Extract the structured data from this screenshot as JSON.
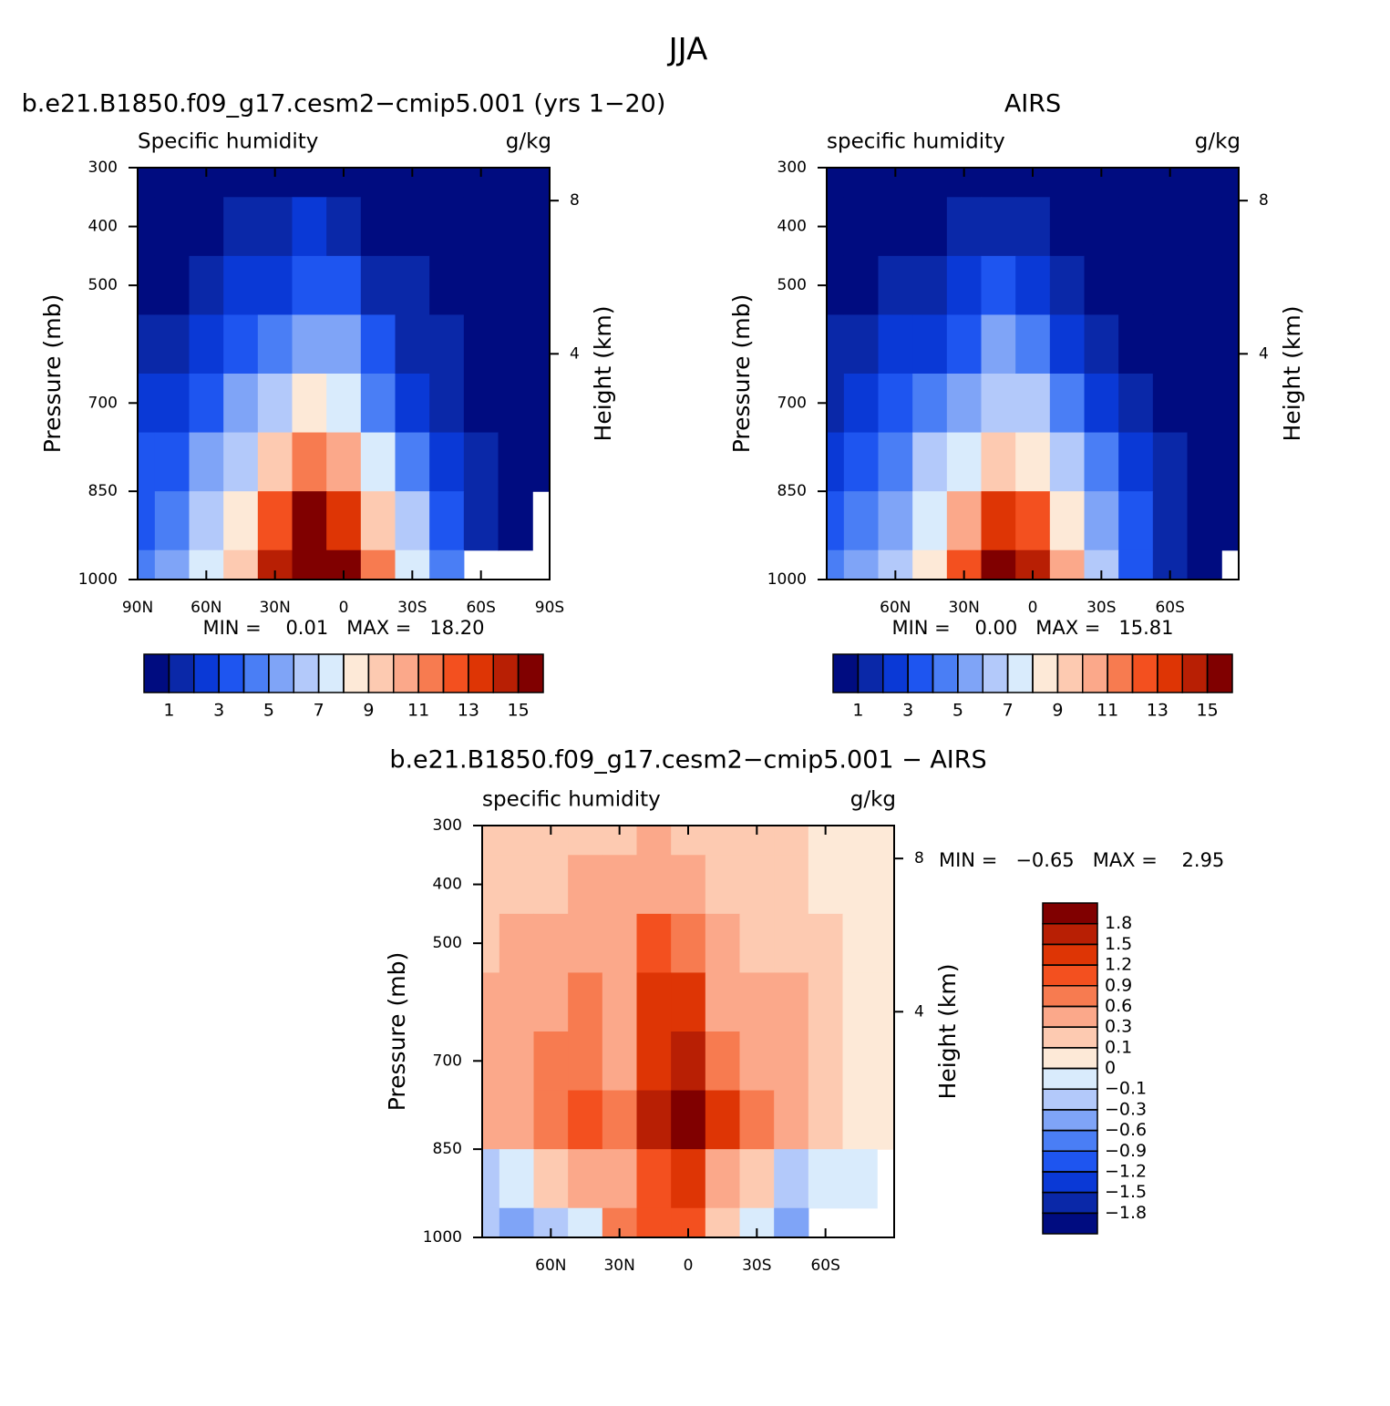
{
  "suptitle": "JJA",
  "chart_data": [
    {
      "type": "contour",
      "title": "b.e21.B1850.f09_g17.cesm2−cmip5.001 (yrs 1−20)",
      "subtitle": "Specific humidity",
      "units": "g/kg",
      "stats": "MIN =    0.01   MAX =   18.20",
      "ylabel": "Pressure (mb)",
      "y2label": "Height (km)",
      "x": [
        90,
        75,
        60,
        45,
        30,
        15,
        0,
        -15,
        -30,
        -45,
        -60,
        -75,
        -90
      ],
      "y": [
        300,
        400,
        500,
        600,
        700,
        800,
        900,
        1000
      ],
      "values": [
        [
          0.1,
          0.1,
          0.2,
          0.3,
          0.5,
          0.8,
          0.6,
          0.3,
          0.2,
          0.1,
          0.05,
          0.02,
          0.01
        ],
        [
          0.3,
          0.4,
          0.6,
          1.0,
          1.4,
          2.0,
          1.6,
          0.9,
          0.5,
          0.3,
          0.1,
          0.05,
          0.02
        ],
        [
          0.7,
          0.9,
          1.3,
          2.0,
          2.8,
          3.8,
          3.3,
          1.8,
          1.1,
          0.6,
          0.3,
          0.1,
          0.05
        ],
        [
          1.2,
          1.6,
          2.3,
          3.4,
          4.6,
          5.8,
          5.1,
          3.0,
          1.8,
          1.0,
          0.5,
          0.2,
          0.1
        ],
        [
          2.0,
          2.6,
          3.6,
          5.0,
          6.3,
          8.0,
          7.2,
          4.6,
          2.9,
          1.7,
          0.8,
          0.3,
          0.2
        ],
        [
          3.0,
          3.8,
          5.0,
          6.8,
          9.0,
          11.0,
          10.0,
          7.0,
          4.6,
          2.8,
          1.3,
          0.5,
          0.3
        ],
        [
          3.8,
          4.8,
          6.3,
          8.6,
          12.0,
          15.0,
          13.5,
          9.6,
          6.5,
          3.8,
          1.8,
          0.6,
          null
        ],
        [
          4.2,
          5.2,
          7.0,
          9.5,
          14.0,
          18.0,
          16.0,
          11.0,
          7.5,
          4.3,
          null,
          null,
          null
        ]
      ],
      "xlim": [
        90,
        -90
      ],
      "ylim": [
        1000,
        300
      ],
      "xticks": [
        {
          "value": 90,
          "label": "90N"
        },
        {
          "value": 60,
          "label": "60N"
        },
        {
          "value": 30,
          "label": "30N"
        },
        0,
        {
          "value": -30,
          "label": "30S"
        },
        {
          "value": -60,
          "label": "60S"
        },
        {
          "value": -90,
          "label": "90S"
        }
      ],
      "yticks": [
        300,
        400,
        500,
        700,
        850,
        1000
      ],
      "y2ticks": [
        4,
        8
      ],
      "levels": [
        1,
        2,
        3,
        4,
        5,
        6,
        7,
        8,
        9,
        10,
        11,
        12,
        13,
        14,
        15
      ],
      "colorbar_label_every": 2,
      "colorbar": "horizontal",
      "colors": [
        "#000c80",
        "#0a28a8",
        "#0a39d6",
        "#1e55f0",
        "#4a7ef5",
        "#7fa4f7",
        "#b3c9fa",
        "#d9ebfc",
        "#fde9d7",
        "#fdcab1",
        "#fba88a",
        "#f77b50",
        "#f3501f",
        "#de3505",
        "#b81f04",
        "#800000"
      ]
    },
    {
      "type": "contour",
      "title": "AIRS",
      "subtitle": "specific humidity",
      "units": "g/kg",
      "stats": "MIN =    0.00   MAX =   15.81",
      "ylabel": "Pressure (mb)",
      "y2label": "Height (km)",
      "x": [
        90,
        75,
        60,
        45,
        30,
        15,
        0,
        -15,
        -30,
        -45,
        -60,
        -75,
        -90
      ],
      "y": [
        300,
        400,
        500,
        600,
        700,
        800,
        900,
        1000
      ],
      "values": [
        [
          0.05,
          0.05,
          0.1,
          0.2,
          0.3,
          0.5,
          0.4,
          0.2,
          0.1,
          0.05,
          0.02,
          0.01,
          0.01
        ],
        [
          0.2,
          0.3,
          0.5,
          0.8,
          1.1,
          1.6,
          1.3,
          0.8,
          0.4,
          0.2,
          0.1,
          0.05,
          0.02
        ],
        [
          0.6,
          0.8,
          1.1,
          1.7,
          2.3,
          3.2,
          2.9,
          1.6,
          0.9,
          0.5,
          0.2,
          0.1,
          0.05
        ],
        [
          1.1,
          1.4,
          2.0,
          2.9,
          3.9,
          5.0,
          4.5,
          2.7,
          1.6,
          0.9,
          0.4,
          0.2,
          0.1
        ],
        [
          1.8,
          2.3,
          3.2,
          4.3,
          5.5,
          6.9,
          6.3,
          4.1,
          2.6,
          1.5,
          0.7,
          0.3,
          0.2
        ],
        [
          2.7,
          3.4,
          4.5,
          6.0,
          7.8,
          9.6,
          8.9,
          6.3,
          4.1,
          2.4,
          1.1,
          0.4,
          0.2
        ],
        [
          3.5,
          4.4,
          5.8,
          7.8,
          10.6,
          13.2,
          12.2,
          8.8,
          5.9,
          3.4,
          1.5,
          0.5,
          0.3
        ],
        [
          4.0,
          5.0,
          6.5,
          8.8,
          12.5,
          15.8,
          14.5,
          10.0,
          6.8,
          3.9,
          1.8,
          0.6,
          null
        ]
      ],
      "xlim": [
        90,
        -90
      ],
      "ylim": [
        1000,
        300
      ],
      "xticks": [
        {
          "value": 60,
          "label": "60N"
        },
        {
          "value": 30,
          "label": "30N"
        },
        0,
        {
          "value": -30,
          "label": "30S"
        },
        {
          "value": -60,
          "label": "60S"
        }
      ],
      "yticks": [
        300,
        400,
        500,
        700,
        850,
        1000
      ],
      "y2ticks": [
        4,
        8
      ],
      "levels": [
        1,
        2,
        3,
        4,
        5,
        6,
        7,
        8,
        9,
        10,
        11,
        12,
        13,
        14,
        15
      ],
      "colorbar_label_every": 2,
      "colorbar": "horizontal",
      "colors": [
        "#000c80",
        "#0a28a8",
        "#0a39d6",
        "#1e55f0",
        "#4a7ef5",
        "#7fa4f7",
        "#b3c9fa",
        "#d9ebfc",
        "#fde9d7",
        "#fdcab1",
        "#fba88a",
        "#f77b50",
        "#f3501f",
        "#de3505",
        "#b81f04",
        "#800000"
      ]
    },
    {
      "type": "contour",
      "title": "b.e21.B1850.f09_g17.cesm2−cmip5.001 − AIRS",
      "subtitle": "specific humidity",
      "units": "g/kg",
      "stats": "MIN =   −0.65   MAX =    2.95",
      "ylabel": "Pressure (mb)",
      "y2label": "Height (km)",
      "x": [
        90,
        75,
        60,
        45,
        30,
        15,
        0,
        -15,
        -30,
        -45,
        -60,
        -75,
        -90
      ],
      "y": [
        300,
        400,
        500,
        600,
        700,
        800,
        900,
        1000
      ],
      "values": [
        [
          0.1,
          0.1,
          0.1,
          0.15,
          0.2,
          0.3,
          0.2,
          0.1,
          0.1,
          0.1,
          0.05,
          0.05,
          0.05
        ],
        [
          0.2,
          0.2,
          0.2,
          0.3,
          0.3,
          0.5,
          0.4,
          0.2,
          0.15,
          0.1,
          0.05,
          0.05,
          0.05
        ],
        [
          0.2,
          0.3,
          0.4,
          0.5,
          0.5,
          0.9,
          0.7,
          0.3,
          0.2,
          0.15,
          0.1,
          0.05,
          0.05
        ],
        [
          0.3,
          0.4,
          0.5,
          0.6,
          0.4,
          1.2,
          1.3,
          0.4,
          0.3,
          0.4,
          0.15,
          0.05,
          0.05
        ],
        [
          0.3,
          0.4,
          0.6,
          0.7,
          0.5,
          1.3,
          1.5,
          0.6,
          0.5,
          0.3,
          0.15,
          0.05,
          0.05
        ],
        [
          0.4,
          0.5,
          0.7,
          1.0,
          0.8,
          1.6,
          1.9,
          1.2,
          0.8,
          0.4,
          0.15,
          0.05,
          0.05
        ],
        [
          -0.2,
          -0.1,
          0.1,
          0.5,
          0.4,
          0.9,
          1.2,
          0.3,
          0.1,
          -0.2,
          -0.05,
          -0.05,
          null
        ],
        [
          -0.3,
          -0.4,
          -0.2,
          -0.1,
          0.6,
          1.0,
          1.0,
          0.1,
          -0.05,
          -0.4,
          null,
          null,
          null
        ]
      ],
      "xlim": [
        90,
        -90
      ],
      "ylim": [
        1000,
        300
      ],
      "xticks": [
        {
          "value": 60,
          "label": "60N"
        },
        {
          "value": 30,
          "label": "30N"
        },
        0,
        {
          "value": -30,
          "label": "30S"
        },
        {
          "value": -60,
          "label": "60S"
        }
      ],
      "yticks": [
        300,
        400,
        500,
        700,
        850,
        1000
      ],
      "y2ticks": [
        4,
        8
      ],
      "levels": [
        {
          "value": -1.8,
          "label": "−1.8"
        },
        {
          "value": -1.5,
          "label": "−1.5"
        },
        {
          "value": -1.2,
          "label": "−1.2"
        },
        {
          "value": -0.9,
          "label": "−0.9"
        },
        {
          "value": -0.6,
          "label": "−0.6"
        },
        {
          "value": -0.3,
          "label": "−0.3"
        },
        {
          "value": -0.1,
          "label": "−0.1"
        },
        0,
        0.1,
        0.3,
        0.6,
        0.9,
        1.2,
        1.5,
        1.8
      ],
      "colorbar_label_every": 1,
      "colorbar": "vertical",
      "colors": [
        "#000c80",
        "#0a28a8",
        "#0a39d6",
        "#1e55f0",
        "#4a7ef5",
        "#7fa4f7",
        "#b3c9fa",
        "#d9ebfc",
        "#fde9d7",
        "#fdcab1",
        "#fba88a",
        "#f77b50",
        "#f3501f",
        "#de3505",
        "#b81f04",
        "#800000"
      ]
    }
  ]
}
